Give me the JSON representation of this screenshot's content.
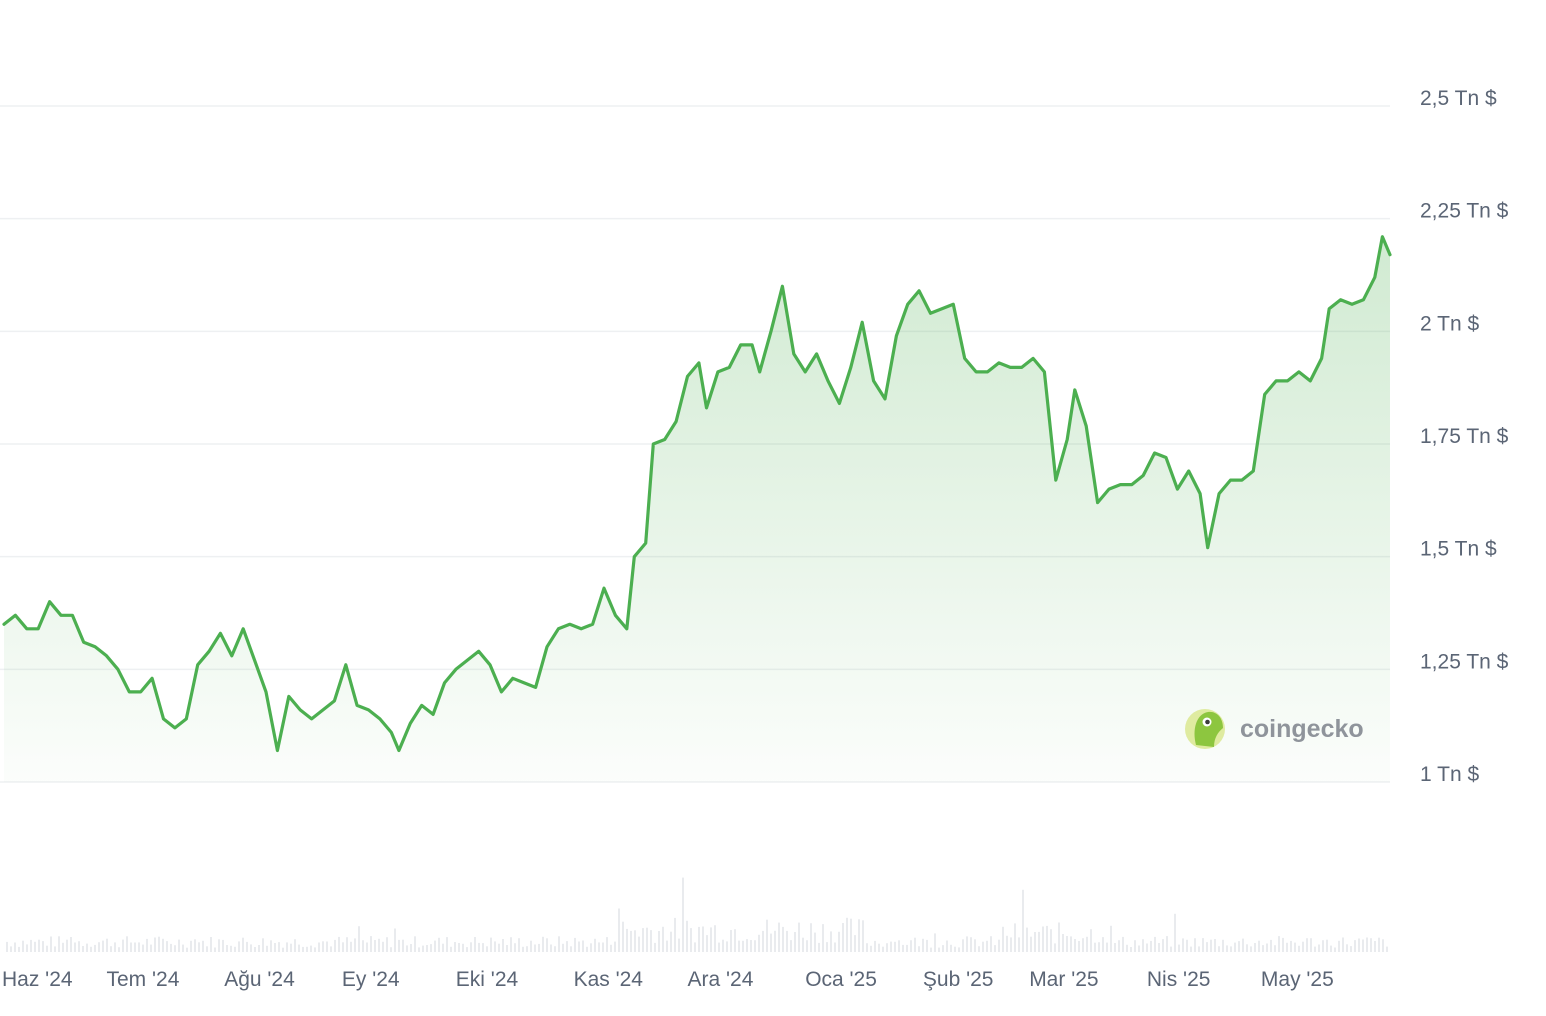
{
  "chart_data": {
    "type": "area",
    "title": "",
    "xlabel": "",
    "ylabel": "",
    "ylim": [
      1.0,
      2.5
    ],
    "y_ticks": [
      {
        "value": 2.5,
        "label": "2,5 Tn $"
      },
      {
        "value": 2.25,
        "label": "2,25 Tn $"
      },
      {
        "value": 2.0,
        "label": "2 Tn $"
      },
      {
        "value": 1.75,
        "label": "1,75 Tn $"
      },
      {
        "value": 1.5,
        "label": "1,5 Tn $"
      },
      {
        "value": 1.25,
        "label": "1,25 Tn $"
      },
      {
        "value": 1.0,
        "label": "1 Tn $"
      }
    ],
    "x_ticks": [
      "Haz '24",
      "Tem '24",
      "Ağu '24",
      "Ey '24",
      "Eki '24",
      "Kas '24",
      "Ara '24",
      "Oca '25",
      "Şub '25",
      "Mar '25",
      "Nis '25",
      "May '25"
    ],
    "y_axis_side": "right",
    "grid": true,
    "line_color": "#4caf50",
    "fill_color": "#4caf50",
    "series": [
      {
        "unit": "Tn $",
        "points": [
          [
            "2024-05-25",
            1.35
          ],
          [
            "2024-05-28",
            1.37
          ],
          [
            "2024-05-31",
            1.34
          ],
          [
            "2024-06-03",
            1.34
          ],
          [
            "2024-06-06",
            1.4
          ],
          [
            "2024-06-09",
            1.37
          ],
          [
            "2024-06-12",
            1.37
          ],
          [
            "2024-06-15",
            1.31
          ],
          [
            "2024-06-18",
            1.3
          ],
          [
            "2024-06-21",
            1.28
          ],
          [
            "2024-06-24",
            1.25
          ],
          [
            "2024-06-27",
            1.2
          ],
          [
            "2024-06-30",
            1.2
          ],
          [
            "2024-07-03",
            1.23
          ],
          [
            "2024-07-06",
            1.14
          ],
          [
            "2024-07-09",
            1.12
          ],
          [
            "2024-07-12",
            1.14
          ],
          [
            "2024-07-15",
            1.26
          ],
          [
            "2024-07-18",
            1.29
          ],
          [
            "2024-07-21",
            1.33
          ],
          [
            "2024-07-24",
            1.28
          ],
          [
            "2024-07-27",
            1.34
          ],
          [
            "2024-07-30",
            1.27
          ],
          [
            "2024-08-02",
            1.2
          ],
          [
            "2024-08-05",
            1.07
          ],
          [
            "2024-08-08",
            1.19
          ],
          [
            "2024-08-11",
            1.16
          ],
          [
            "2024-08-14",
            1.14
          ],
          [
            "2024-08-17",
            1.16
          ],
          [
            "2024-08-20",
            1.18
          ],
          [
            "2024-08-23",
            1.26
          ],
          [
            "2024-08-26",
            1.17
          ],
          [
            "2024-08-29",
            1.16
          ],
          [
            "2024-09-01",
            1.14
          ],
          [
            "2024-09-04",
            1.11
          ],
          [
            "2024-09-06",
            1.07
          ],
          [
            "2024-09-09",
            1.13
          ],
          [
            "2024-09-12",
            1.17
          ],
          [
            "2024-09-15",
            1.15
          ],
          [
            "2024-09-18",
            1.22
          ],
          [
            "2024-09-21",
            1.25
          ],
          [
            "2024-09-24",
            1.27
          ],
          [
            "2024-09-27",
            1.29
          ],
          [
            "2024-09-30",
            1.26
          ],
          [
            "2024-10-03",
            1.2
          ],
          [
            "2024-10-06",
            1.23
          ],
          [
            "2024-10-09",
            1.22
          ],
          [
            "2024-10-12",
            1.21
          ],
          [
            "2024-10-15",
            1.3
          ],
          [
            "2024-10-18",
            1.34
          ],
          [
            "2024-10-21",
            1.35
          ],
          [
            "2024-10-24",
            1.34
          ],
          [
            "2024-10-27",
            1.35
          ],
          [
            "2024-10-30",
            1.43
          ],
          [
            "2024-11-02",
            1.37
          ],
          [
            "2024-11-05",
            1.34
          ],
          [
            "2024-11-07",
            1.5
          ],
          [
            "2024-11-10",
            1.53
          ],
          [
            "2024-11-12",
            1.75
          ],
          [
            "2024-11-15",
            1.76
          ],
          [
            "2024-11-18",
            1.8
          ],
          [
            "2024-11-21",
            1.9
          ],
          [
            "2024-11-24",
            1.93
          ],
          [
            "2024-11-26",
            1.83
          ],
          [
            "2024-11-29",
            1.91
          ],
          [
            "2024-12-02",
            1.92
          ],
          [
            "2024-12-05",
            1.97
          ],
          [
            "2024-12-08",
            1.97
          ],
          [
            "2024-12-10",
            1.91
          ],
          [
            "2024-12-13",
            2.0
          ],
          [
            "2024-12-16",
            2.1
          ],
          [
            "2024-12-19",
            1.95
          ],
          [
            "2024-12-22",
            1.91
          ],
          [
            "2024-12-25",
            1.95
          ],
          [
            "2024-12-28",
            1.89
          ],
          [
            "2024-12-31",
            1.84
          ],
          [
            "2025-01-03",
            1.92
          ],
          [
            "2025-01-06",
            2.02
          ],
          [
            "2025-01-09",
            1.89
          ],
          [
            "2025-01-12",
            1.85
          ],
          [
            "2025-01-15",
            1.99
          ],
          [
            "2025-01-18",
            2.06
          ],
          [
            "2025-01-21",
            2.09
          ],
          [
            "2025-01-24",
            2.04
          ],
          [
            "2025-01-27",
            2.05
          ],
          [
            "2025-01-30",
            2.06
          ],
          [
            "2025-02-02",
            1.94
          ],
          [
            "2025-02-05",
            1.91
          ],
          [
            "2025-02-08",
            1.91
          ],
          [
            "2025-02-11",
            1.93
          ],
          [
            "2025-02-14",
            1.92
          ],
          [
            "2025-02-17",
            1.92
          ],
          [
            "2025-02-20",
            1.94
          ],
          [
            "2025-02-23",
            1.91
          ],
          [
            "2025-02-26",
            1.67
          ],
          [
            "2025-03-01",
            1.76
          ],
          [
            "2025-03-03",
            1.87
          ],
          [
            "2025-03-06",
            1.79
          ],
          [
            "2025-03-09",
            1.62
          ],
          [
            "2025-03-12",
            1.65
          ],
          [
            "2025-03-15",
            1.66
          ],
          [
            "2025-03-18",
            1.66
          ],
          [
            "2025-03-21",
            1.68
          ],
          [
            "2025-03-24",
            1.73
          ],
          [
            "2025-03-27",
            1.72
          ],
          [
            "2025-03-30",
            1.65
          ],
          [
            "2025-04-02",
            1.69
          ],
          [
            "2025-04-05",
            1.64
          ],
          [
            "2025-04-07",
            1.52
          ],
          [
            "2025-04-10",
            1.64
          ],
          [
            "2025-04-13",
            1.67
          ],
          [
            "2025-04-16",
            1.67
          ],
          [
            "2025-04-19",
            1.69
          ],
          [
            "2025-04-22",
            1.86
          ],
          [
            "2025-04-25",
            1.89
          ],
          [
            "2025-04-28",
            1.89
          ],
          [
            "2025-05-01",
            1.91
          ],
          [
            "2025-05-04",
            1.89
          ],
          [
            "2025-05-07",
            1.94
          ],
          [
            "2025-05-09",
            2.05
          ],
          [
            "2025-05-12",
            2.07
          ],
          [
            "2025-05-15",
            2.06
          ],
          [
            "2025-05-18",
            2.07
          ],
          [
            "2025-05-21",
            2.12
          ],
          [
            "2025-05-23",
            2.21
          ],
          [
            "2025-05-25",
            2.17
          ]
        ]
      }
    ]
  },
  "watermark": {
    "text": "coingecko",
    "icon": "coingecko-gecko-icon"
  }
}
